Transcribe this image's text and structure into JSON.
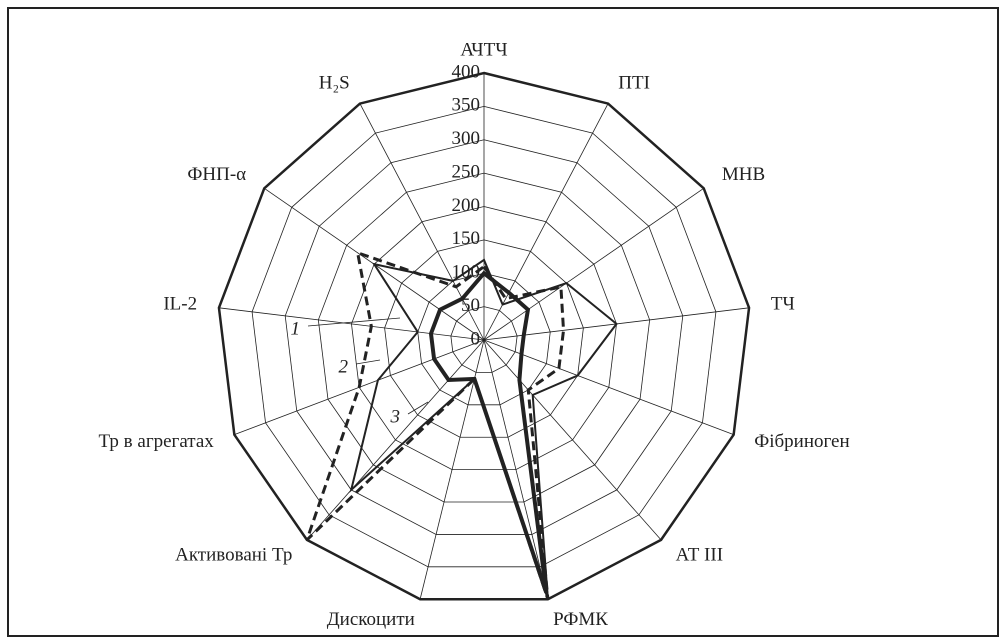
{
  "chart_data": {
    "type": "radar",
    "categories": [
      "АЧТЧ",
      "ПТІ",
      "МНВ",
      "ТЧ",
      "Фібриноген",
      "АТ ІІІ",
      "РФМК",
      "Дискоцити",
      "Активовані Тр",
      "Тр в агрегатах",
      "IL-2",
      "ФНП-α",
      "H₂S"
    ],
    "ylim": [
      0,
      400
    ],
    "yticks": [
      0,
      50,
      100,
      150,
      200,
      250,
      300,
      350,
      400
    ],
    "grid": true,
    "series": [
      {
        "name": "1",
        "color": "#222222",
        "style": "solid-thin",
        "values": [
          120,
          60,
          150,
          200,
          150,
          110,
          400,
          60,
          300,
          170,
          100,
          200,
          100
        ]
      },
      {
        "name": "2",
        "color": "#222222",
        "style": "dashed",
        "values": [
          110,
          70,
          140,
          120,
          120,
          100,
          400,
          60,
          400,
          200,
          170,
          230,
          90
        ]
      },
      {
        "name": "3",
        "color": "#222222",
        "style": "solid-thick",
        "values": [
          100,
          80,
          80,
          60,
          60,
          80,
          390,
          60,
          80,
          80,
          80,
          80,
          70
        ]
      }
    ]
  }
}
